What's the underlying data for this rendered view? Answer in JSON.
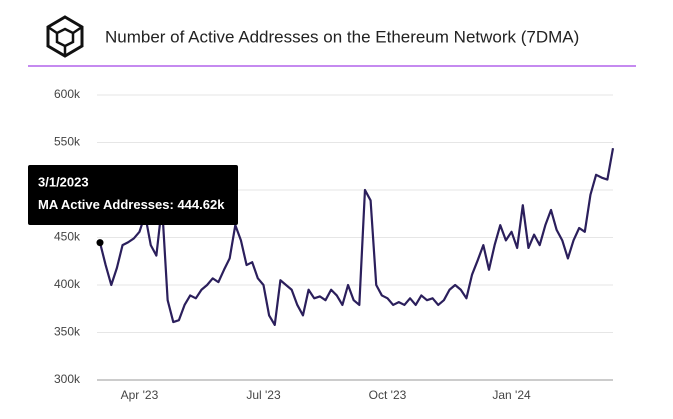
{
  "chart_data": {
    "type": "line",
    "title": "Number of Active Addresses on the Ethereum Network (7DMA)",
    "categories": [
      null,
      null,
      null,
      null,
      null,
      null,
      null,
      "Apr '23",
      null,
      null,
      null,
      null,
      null,
      null,
      null,
      null,
      null,
      null,
      null,
      null,
      null,
      null,
      null,
      null,
      null,
      null,
      null,
      null,
      null,
      "Jul '23",
      null,
      null,
      null,
      null,
      null,
      null,
      null,
      null,
      null,
      null,
      null,
      null,
      null,
      null,
      null,
      null,
      null,
      null,
      null,
      null,
      null,
      "Oct '23",
      null,
      null,
      null,
      null,
      null,
      null,
      null,
      null,
      null,
      null,
      null,
      null,
      null,
      null,
      null,
      null,
      null,
      null,
      null,
      null,
      null,
      "Jan '24",
      null,
      null,
      null,
      null,
      null,
      null,
      null,
      null,
      null,
      null,
      null,
      null,
      null,
      null,
      null,
      null,
      null,
      null
    ],
    "series": [
      {
        "name": "MA Active Addresses",
        "color": "#2b1f5c",
        "values": [
          444620,
          421000,
          400000,
          418000,
          442000,
          445000,
          449000,
          456000,
          474000,
          442000,
          431000,
          484000,
          384000,
          361000,
          363000,
          379000,
          389000,
          386000,
          395000,
          400000,
          407000,
          403000,
          416000,
          428000,
          463000,
          447000,
          421000,
          424000,
          407000,
          400000,
          368000,
          358000,
          405000,
          400000,
          395000,
          379000,
          368000,
          395000,
          386000,
          388000,
          384000,
          395000,
          389000,
          379000,
          400000,
          384000,
          379000,
          500000,
          489000,
          400000,
          389000,
          386000,
          379000,
          382000,
          379000,
          386000,
          379000,
          389000,
          384000,
          386000,
          379000,
          384000,
          395000,
          400000,
          395000,
          386000,
          411000,
          426000,
          442000,
          416000,
          442000,
          463000,
          447000,
          456000,
          439000,
          484000,
          439000,
          453000,
          442000,
          463000,
          479000,
          458000,
          447000,
          428000,
          447000,
          460000,
          456000,
          495000,
          516000,
          513000,
          511000,
          544000
        ]
      }
    ],
    "ylim": [
      300000,
      600000
    ],
    "yticks": [
      {
        "value": 300000,
        "label": "300k"
      },
      {
        "value": 350000,
        "label": "350k"
      },
      {
        "value": 400000,
        "label": "400k"
      },
      {
        "value": 450000,
        "label": "450k"
      },
      {
        "value": 500000,
        "label": "500k"
      },
      {
        "value": 550000,
        "label": "550k"
      },
      {
        "value": 600000,
        "label": "600k"
      }
    ],
    "grid": true,
    "tooltip": {
      "date": "3/1/2023",
      "label": "MA Active Addresses:",
      "value_label": "444.62k"
    }
  }
}
